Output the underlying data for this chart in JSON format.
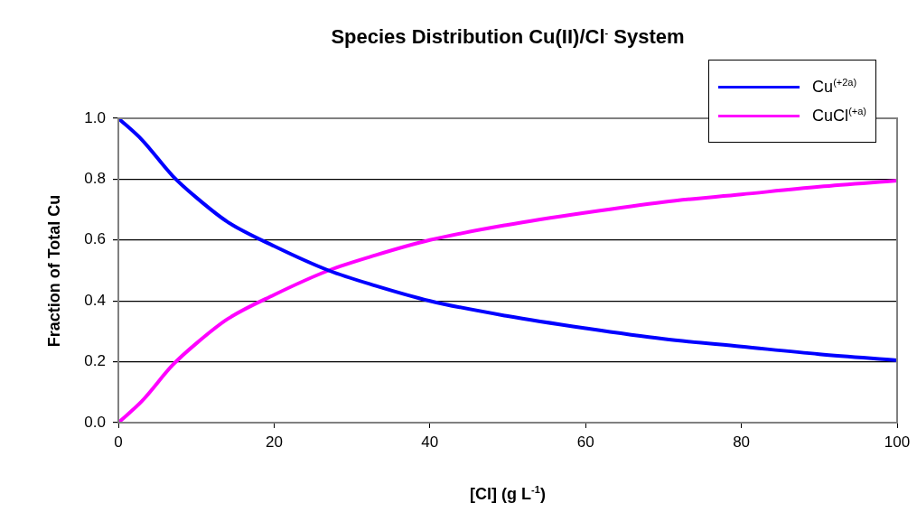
{
  "chart_data": {
    "type": "line",
    "title": "Species Distribution Cu(II)/Cl$^{-}$ System",
    "xlabel": "[Cl] (g L$^{-1}$)",
    "ylabel": "Fraction of Total Cu",
    "xlim": [
      0,
      100
    ],
    "xticks": [
      0,
      20,
      40,
      60,
      80,
      100
    ],
    "ylim": [
      0,
      1
    ],
    "yticks": [
      {
        "value": 0,
        "label": "0.0"
      },
      {
        "value": 0.2,
        "label": "0.2"
      },
      {
        "value": 0.4,
        "label": "0.4"
      },
      {
        "value": 0.6,
        "label": "0.6"
      },
      {
        "value": 0.8,
        "label": "0.8"
      },
      {
        "value": 1,
        "label": "1.0"
      }
    ],
    "grid": "y",
    "legend": "top right",
    "marker": "none",
    "line_style": "solid",
    "x": [
      0,
      3,
      7,
      10,
      14,
      20,
      27,
      33,
      40,
      50,
      60,
      70,
      80,
      90,
      100
    ],
    "series": [
      {
        "name": "Cu$^{(+2a)}$",
        "color": "#0000ff",
        "values": [
          1.0,
          0.93,
          0.81,
          0.74,
          0.66,
          0.58,
          0.5,
          0.45,
          0.4,
          0.35,
          0.31,
          0.275,
          0.25,
          0.225,
          0.205
        ]
      },
      {
        "name": "CuCl$^{(+a)}$",
        "color": "#ff00ff",
        "values": [
          0,
          0.07,
          0.19,
          0.26,
          0.34,
          0.42,
          0.5,
          0.55,
          0.6,
          0.65,
          0.69,
          0.725,
          0.75,
          0.775,
          0.795
        ]
      }
    ]
  }
}
